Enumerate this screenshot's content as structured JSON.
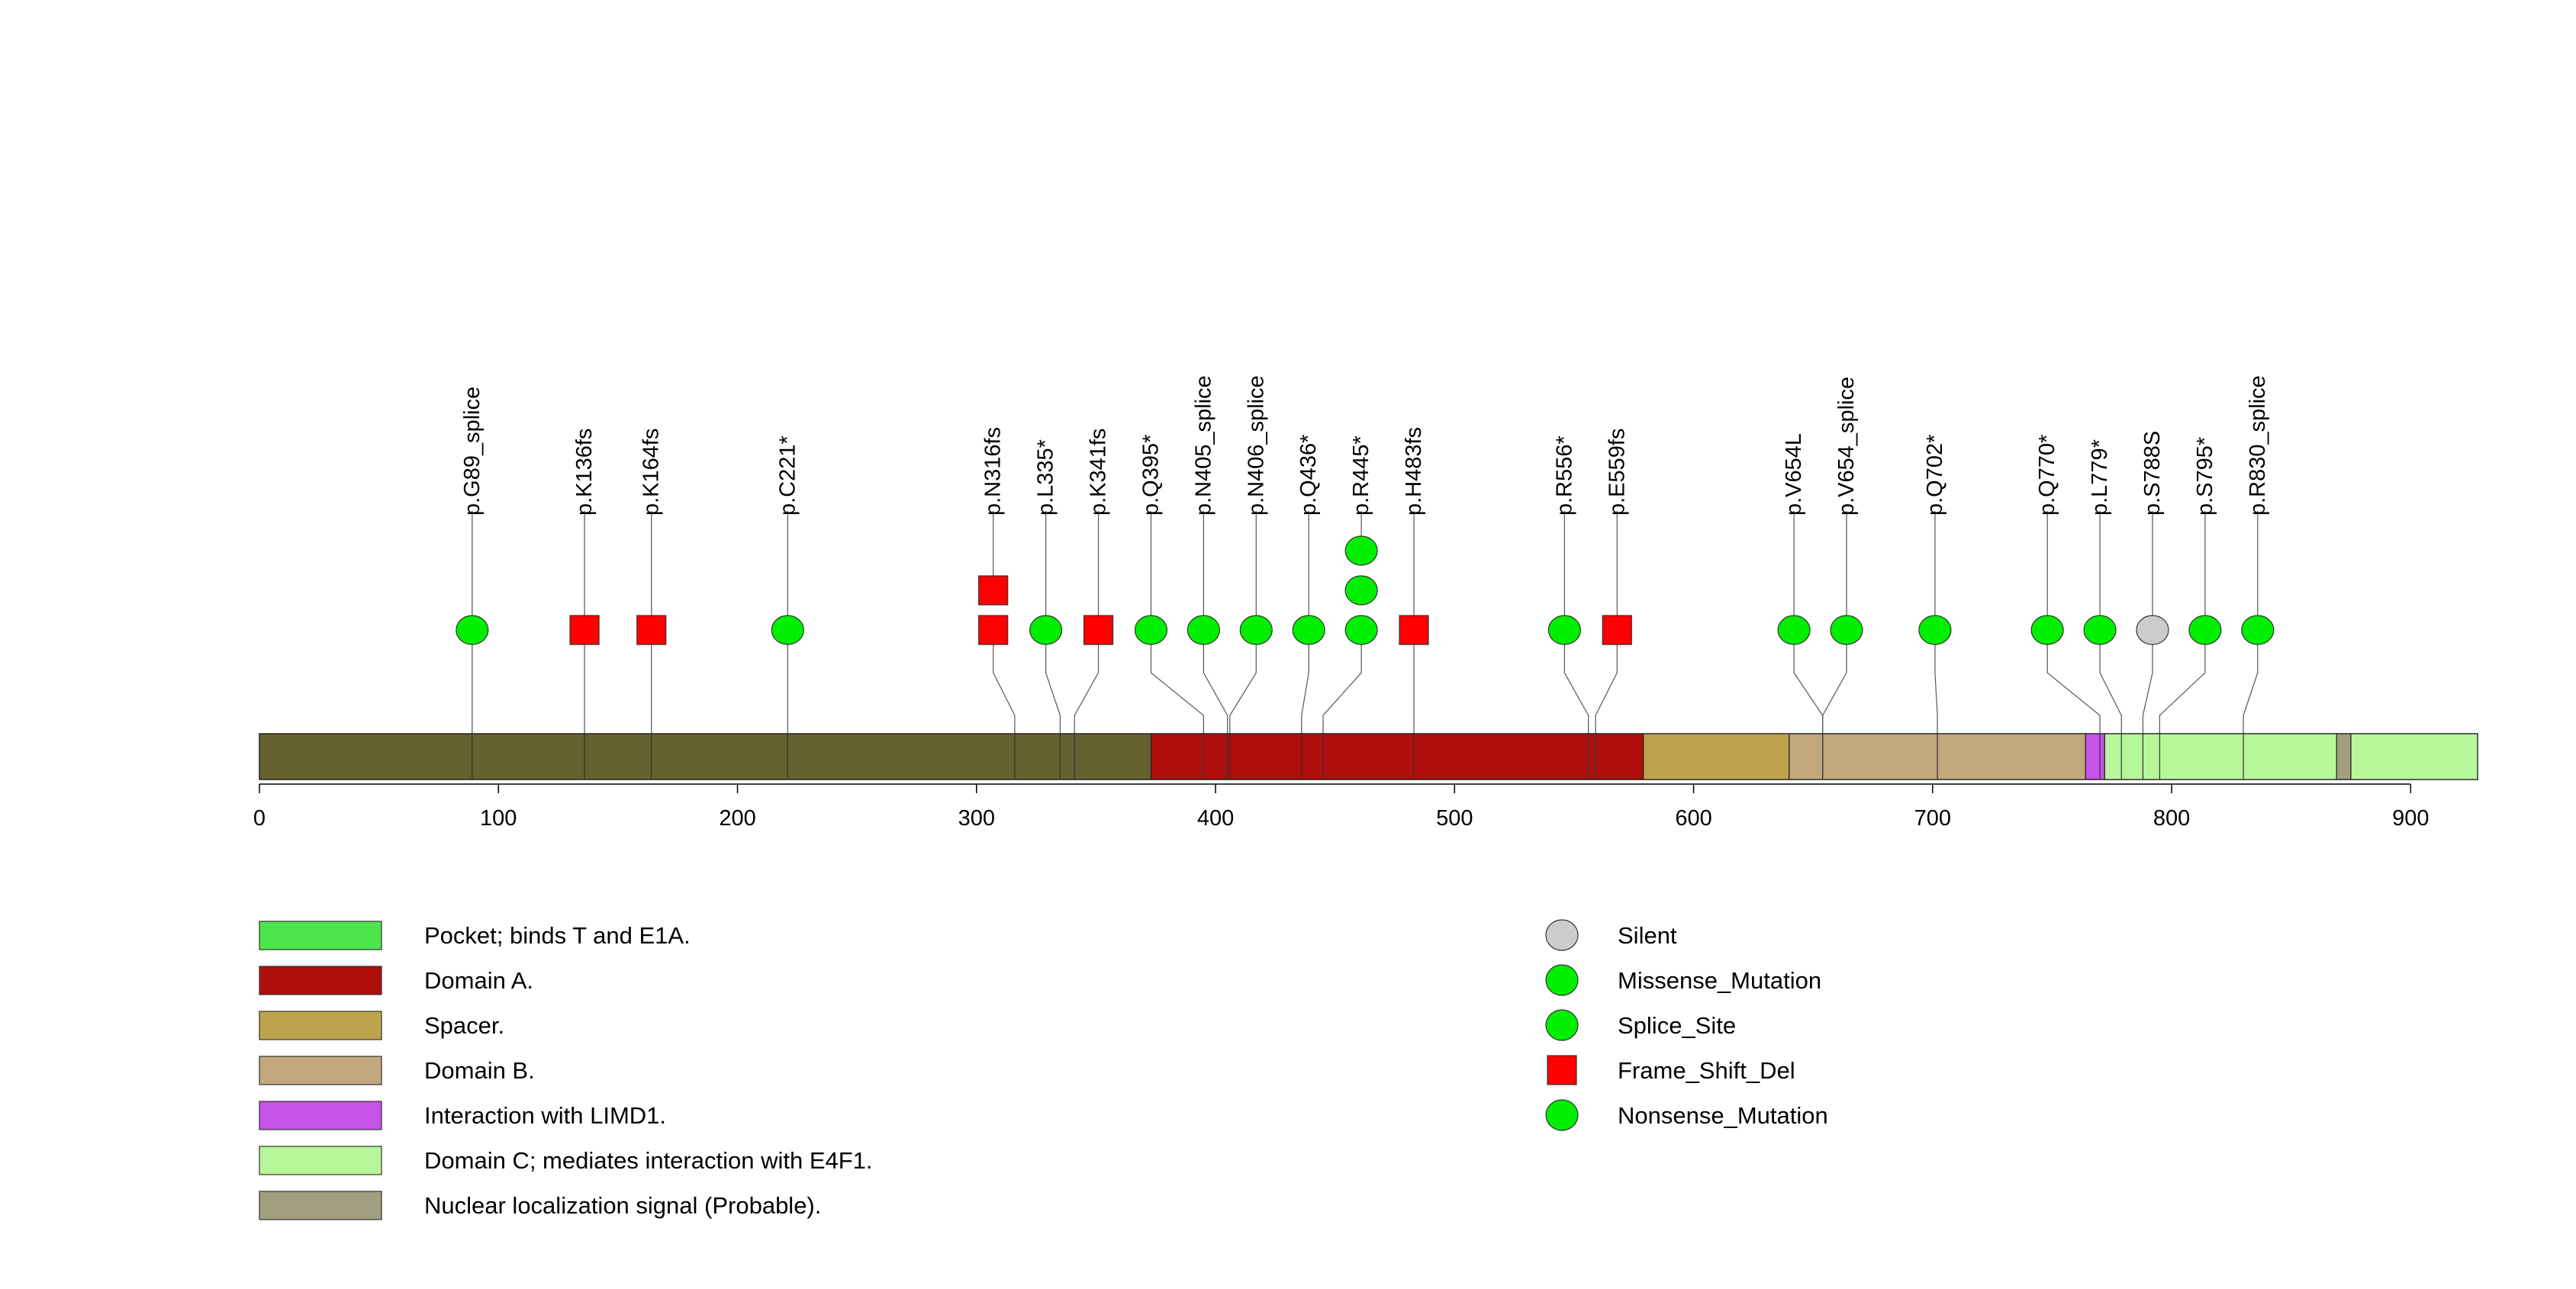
{
  "chart_data": {
    "type": "lollipop",
    "protein_length": 928,
    "x_ticks": [
      0,
      100,
      200,
      300,
      400,
      500,
      600,
      700,
      800,
      900
    ],
    "backbone_color": "#666130",
    "domains": [
      {
        "name": "Domain A.",
        "start": 373,
        "end": 579,
        "color": "#b00d0d"
      },
      {
        "name": "Spacer.",
        "start": 579,
        "end": 640,
        "color": "#bda44c"
      },
      {
        "name": "Domain B.",
        "start": 640,
        "end": 764,
        "color": "#c2a87e"
      },
      {
        "name": "Interaction with LIMD1.",
        "start": 764,
        "end": 772,
        "color": "#c653e8"
      },
      {
        "name": "Domain C; mediates interaction with E4F1.",
        "start": 772,
        "end": 870,
        "color": "#b7f79a"
      },
      {
        "name": "Nuclear localization signal (Probable).",
        "start": 869,
        "end": 875,
        "color": "#a19f7f"
      },
      {
        "name": "Domain C; mediates interaction with E4F1.",
        "start": 875,
        "end": 928,
        "color": "#b7f79a"
      }
    ],
    "domain_legend": [
      {
        "label": "Pocket; binds T and E1A.",
        "color": "#4ce64c"
      },
      {
        "label": "Domain A.",
        "color": "#b00d0d"
      },
      {
        "label": "Spacer.",
        "color": "#bda44c"
      },
      {
        "label": "Domain B.",
        "color": "#c2a87e"
      },
      {
        "label": "Interaction with LIMD1.",
        "color": "#c653e8"
      },
      {
        "label": "Domain C; mediates interaction with E4F1.",
        "color": "#b7f79a"
      },
      {
        "label": "Nuclear localization signal (Probable).",
        "color": "#a19f7f"
      }
    ],
    "mutation_legend": [
      {
        "label": "Silent",
        "color": "#cccccc",
        "shape": "circle"
      },
      {
        "label": "Missense_Mutation",
        "color": "#00ee00",
        "shape": "circle"
      },
      {
        "label": "Splice_Site",
        "color": "#00ee00",
        "shape": "circle"
      },
      {
        "label": "Frame_Shift_Del",
        "color": "#ff0000",
        "shape": "square"
      },
      {
        "label": "Nonsense_Mutation",
        "color": "#00ee00",
        "shape": "circle"
      }
    ],
    "mutations": [
      {
        "label": "p.G89_splice",
        "pos": 89,
        "display": 89,
        "type": "Splice_Site",
        "count": 1
      },
      {
        "label": "p.K136fs",
        "pos": 136,
        "display": 136,
        "type": "Frame_Shift_Del",
        "count": 1
      },
      {
        "label": "p.K164fs",
        "pos": 164,
        "display": 164,
        "type": "Frame_Shift_Del",
        "count": 1
      },
      {
        "label": "p.C221*",
        "pos": 221,
        "display": 221,
        "type": "Nonsense_Mutation",
        "count": 1
      },
      {
        "label": "p.N316fs",
        "pos": 316,
        "display": 307,
        "type": "Frame_Shift_Del",
        "count": 2
      },
      {
        "label": "p.L335*",
        "pos": 335,
        "display": 329,
        "type": "Nonsense_Mutation",
        "count": 1
      },
      {
        "label": "p.K341fs",
        "pos": 341,
        "display": 351,
        "type": "Frame_Shift_Del",
        "count": 1
      },
      {
        "label": "p.Q395*",
        "pos": 395,
        "display": 373,
        "type": "Nonsense_Mutation",
        "count": 1
      },
      {
        "label": "p.N405_splice",
        "pos": 405,
        "display": 395,
        "type": "Splice_Site",
        "count": 1
      },
      {
        "label": "p.N406_splice",
        "pos": 406,
        "display": 417,
        "type": "Splice_Site",
        "count": 1
      },
      {
        "label": "p.Q436*",
        "pos": 436,
        "display": 439,
        "type": "Nonsense_Mutation",
        "count": 1
      },
      {
        "label": "p.R445*",
        "pos": 445,
        "display": 461,
        "type": "Nonsense_Mutation",
        "count": 3
      },
      {
        "label": "p.H483fs",
        "pos": 483,
        "display": 483,
        "type": "Frame_Shift_Del",
        "count": 1
      },
      {
        "label": "p.R556*",
        "pos": 556,
        "display": 546,
        "type": "Nonsense_Mutation",
        "count": 1
      },
      {
        "label": "p.E559fs",
        "pos": 559,
        "display": 568,
        "type": "Frame_Shift_Del",
        "count": 1
      },
      {
        "label": "p.V654L",
        "pos": 654,
        "display": 642,
        "type": "Missense_Mutation",
        "count": 1
      },
      {
        "label": "p.V654_splice",
        "pos": 654,
        "display": 664,
        "type": "Splice_Site",
        "count": 1
      },
      {
        "label": "p.Q702*",
        "pos": 702,
        "display": 701,
        "type": "Nonsense_Mutation",
        "count": 1
      },
      {
        "label": "p.Q770*",
        "pos": 770,
        "display": 748,
        "type": "Nonsense_Mutation",
        "count": 1
      },
      {
        "label": "p.L779*",
        "pos": 779,
        "display": 770,
        "type": "Nonsense_Mutation",
        "count": 1
      },
      {
        "label": "p.S788S",
        "pos": 788,
        "display": 792,
        "type": "Silent",
        "count": 1
      },
      {
        "label": "p.S795*",
        "pos": 795,
        "display": 814,
        "type": "Nonsense_Mutation",
        "count": 1
      },
      {
        "label": "p.R830_splice",
        "pos": 830,
        "display": 836,
        "type": "Splice_Site",
        "count": 1
      }
    ]
  }
}
